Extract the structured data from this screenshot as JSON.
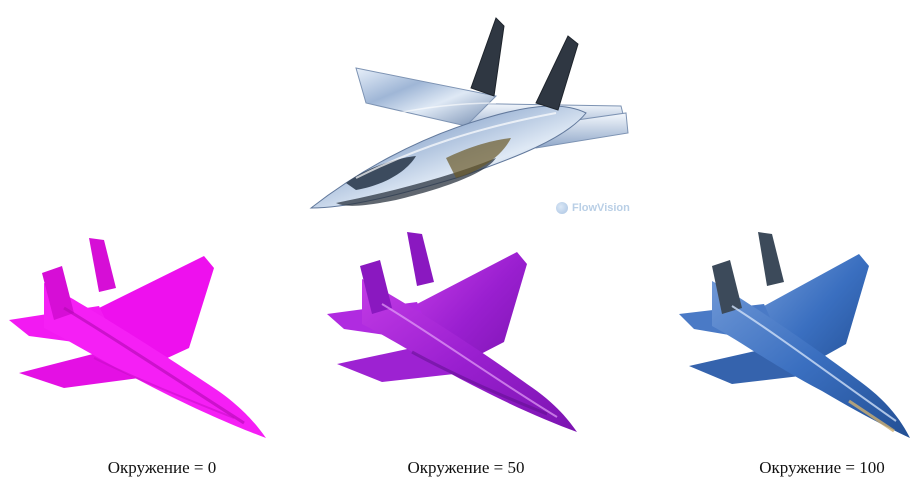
{
  "top_render": {
    "watermark": "FlowVision"
  },
  "panels": [
    {
      "caption": "Окружение = 0",
      "color": "#f20ef2"
    },
    {
      "caption": "Окружение = 50",
      "color": "#a31fd6"
    },
    {
      "caption": "Окружение = 100",
      "color": "#3a6fc0"
    }
  ],
  "colors": {
    "chrome": "#b9cde6",
    "dark": "#2b3440",
    "background": "#ffffff"
  }
}
